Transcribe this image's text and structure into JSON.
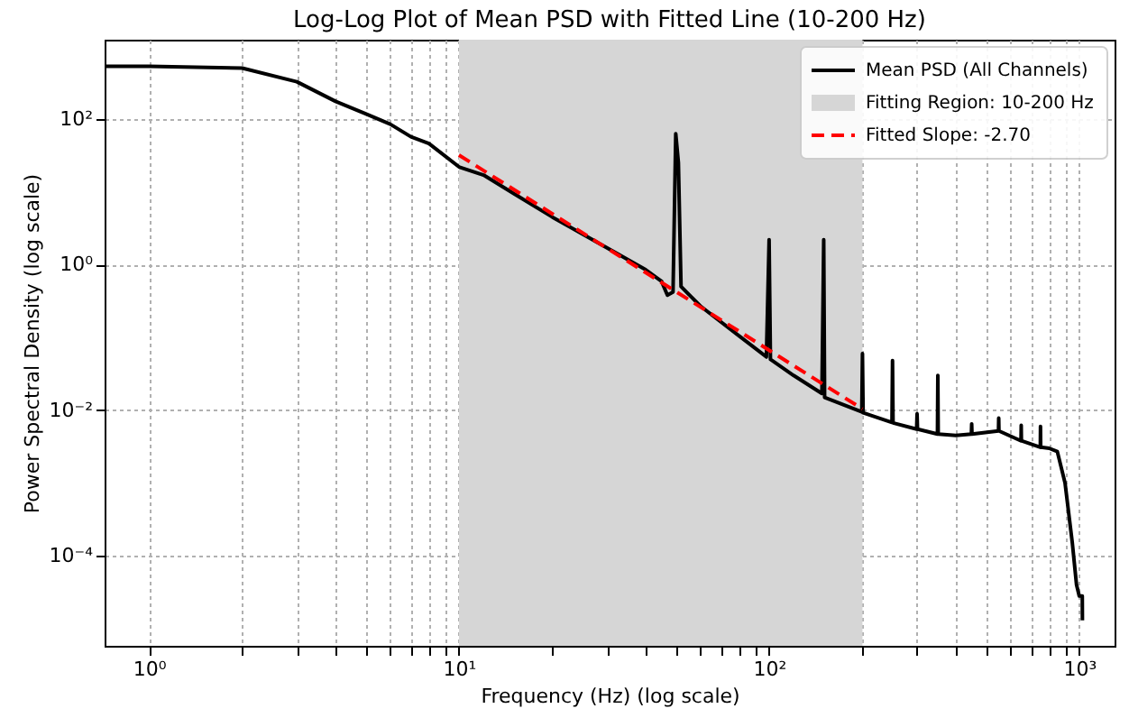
{
  "chart_data": {
    "type": "line",
    "title": "Log-Log Plot of Mean PSD with Fitted Line (10-200 Hz)",
    "xlabel": "Frequency (Hz) (log scale)",
    "ylabel": "Power Spectral Density (log scale)",
    "log": "xy",
    "grid": true,
    "legend": "top right",
    "xlim": [
      0.72,
      1300
    ],
    "ylim": [
      5.8e-06,
      1230
    ],
    "xticks": [
      {
        "value": 1,
        "label": "10⁰"
      },
      {
        "value": 2,
        "label": null
      },
      {
        "value": 3,
        "label": null
      },
      {
        "value": 4,
        "label": null
      },
      {
        "value": 5,
        "label": null
      },
      {
        "value": 6,
        "label": null
      },
      {
        "value": 7,
        "label": null
      },
      {
        "value": 8,
        "label": null
      },
      {
        "value": 9,
        "label": null
      },
      {
        "value": 10,
        "label": "10¹"
      },
      {
        "value": 20,
        "label": null
      },
      {
        "value": 30,
        "label": null
      },
      {
        "value": 40,
        "label": null
      },
      {
        "value": 50,
        "label": null
      },
      {
        "value": 60,
        "label": null
      },
      {
        "value": 70,
        "label": null
      },
      {
        "value": 80,
        "label": null
      },
      {
        "value": 90,
        "label": null
      },
      {
        "value": 100,
        "label": "10²"
      },
      {
        "value": 200,
        "label": null
      },
      {
        "value": 300,
        "label": null
      },
      {
        "value": 400,
        "label": null
      },
      {
        "value": 500,
        "label": null
      },
      {
        "value": 600,
        "label": null
      },
      {
        "value": 700,
        "label": null
      },
      {
        "value": 800,
        "label": null
      },
      {
        "value": 900,
        "label": null
      },
      {
        "value": 1000,
        "label": "10³"
      }
    ],
    "yticks": [
      {
        "value": 0.0001,
        "label": "10⁻⁴"
      },
      {
        "value": 0.01,
        "label": "10⁻²"
      },
      {
        "value": 1,
        "label": "10⁰"
      },
      {
        "value": 100,
        "label": "10²"
      }
    ],
    "bands": [
      {
        "axis": "x",
        "from": 10,
        "to": 200,
        "label": "Fitting Region: 10-200 Hz",
        "color": "#d6d6d6"
      }
    ],
    "series": [
      {
        "name": "Mean PSD (All Channels)",
        "color": "#000000",
        "line_style": "solid",
        "x": [
          0.72,
          1,
          2,
          3,
          4,
          5,
          6,
          7,
          8,
          10,
          12,
          15,
          20,
          30,
          40,
          45,
          47,
          49,
          50,
          51,
          52,
          60,
          80,
          98,
          100,
          101,
          120,
          148,
          150,
          151,
          199,
          200,
          201,
          249,
          250,
          251,
          299,
          300,
          301,
          349,
          350,
          351,
          400,
          449,
          450,
          451,
          549,
          550,
          551,
          649,
          650,
          651,
          749,
          750,
          751,
          800,
          850,
          900,
          950,
          980,
          1000,
          1023,
          1024
        ],
        "values": [
          530,
          530,
          500,
          325,
          175,
          118,
          85,
          57,
          46,
          22,
          17,
          9.5,
          4.5,
          1.7,
          0.85,
          0.59,
          0.38,
          0.42,
          63,
          25,
          0.5,
          0.27,
          0.105,
          0.054,
          2.2,
          0.05,
          0.03,
          0.017,
          2.2,
          0.015,
          0.0095,
          0.06,
          0.0092,
          0.0068,
          0.048,
          0.0067,
          0.0055,
          0.0089,
          0.0055,
          0.0047,
          0.03,
          0.0047,
          0.0045,
          0.0047,
          0.0065,
          0.0047,
          0.0052,
          0.0078,
          0.0052,
          0.0038,
          0.0062,
          0.0038,
          0.0031,
          0.006,
          0.0031,
          0.003,
          0.0027,
          0.001,
          0.00015,
          4e-05,
          2.8e-05,
          2.8e-05,
          1.3e-05
        ]
      },
      {
        "name": "Fitted Slope: -2.70",
        "color": "#ff0000",
        "line_style": "dashed",
        "x": [
          10,
          200
        ],
        "values": [
          32,
          0.0104
        ]
      }
    ]
  }
}
